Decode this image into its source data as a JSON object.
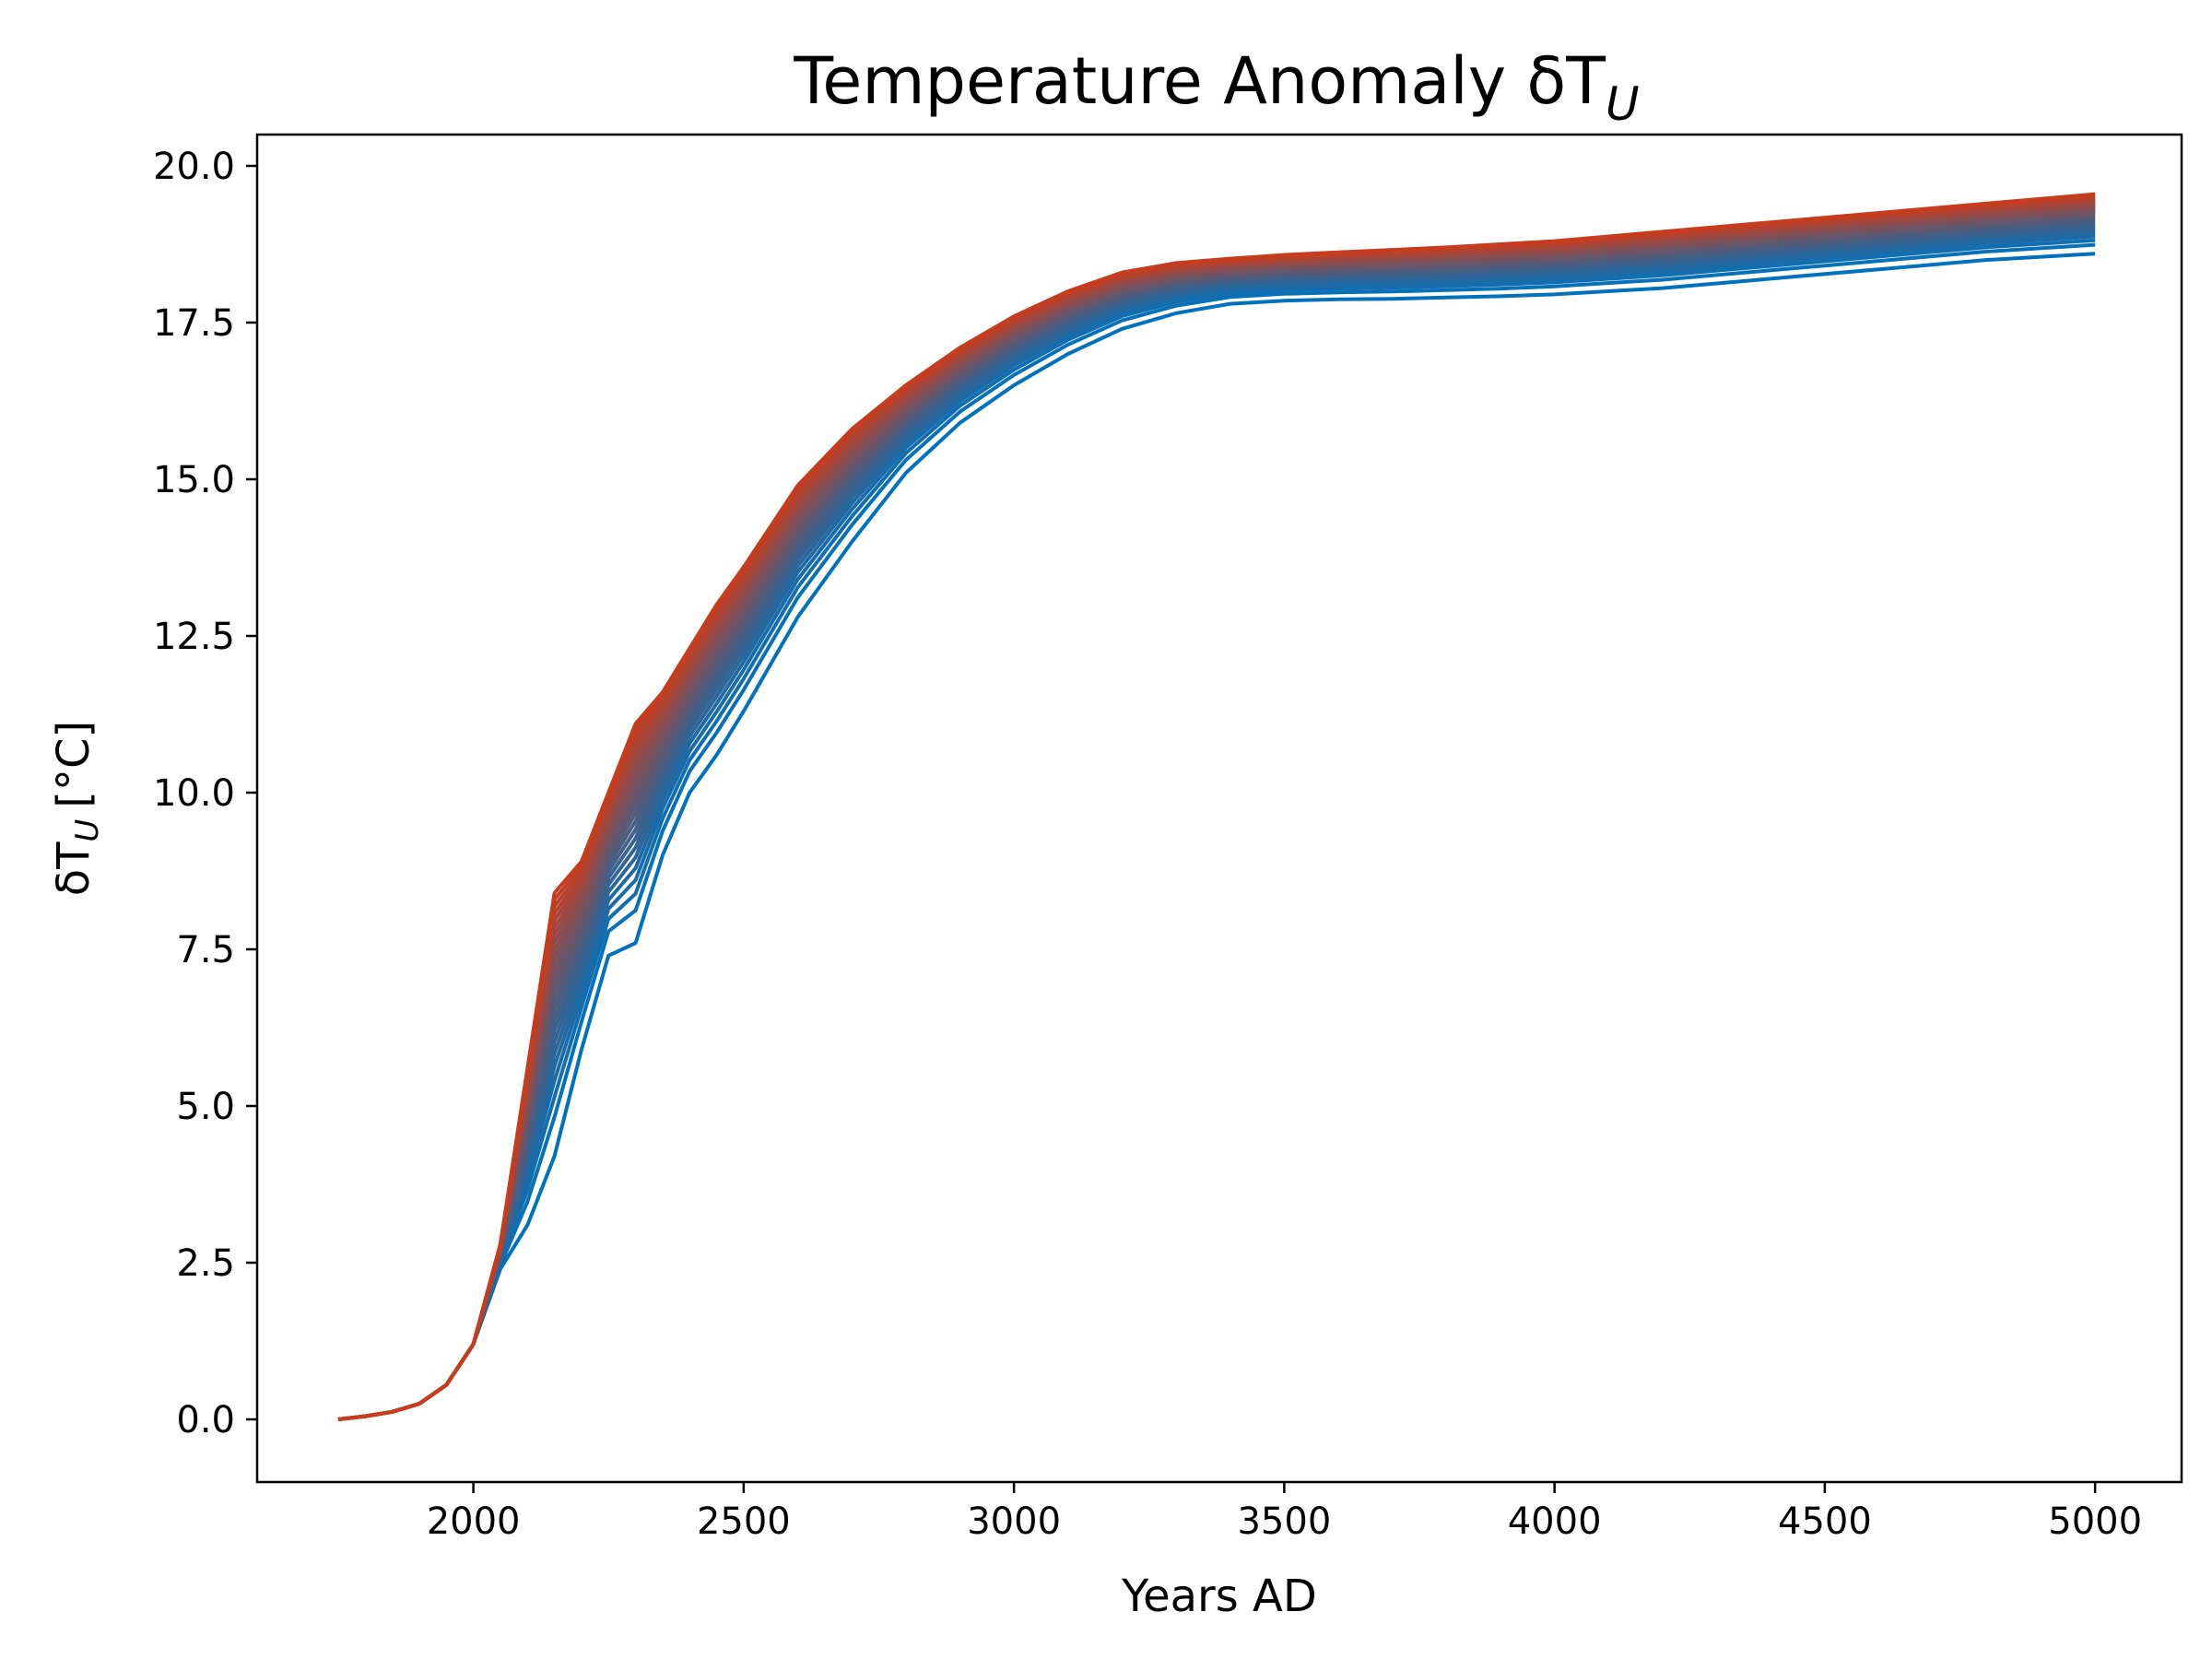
{
  "chart_data": {
    "type": "line",
    "title": "Temperature Anomaly δT",
    "title_subscript": "U",
    "xlabel": "Years AD",
    "ylabel": "δT",
    "ylabel_subscript": "U",
    "ylabel_unit": "[°C]",
    "xlim": [
      1600,
      5160
    ],
    "ylim": [
      -1,
      20.5
    ],
    "xticks": [
      2000,
      2500,
      3000,
      3500,
      4000,
      4500,
      5000
    ],
    "xtick_labels": [
      "2000",
      "2500",
      "3000",
      "3500",
      "4000",
      "4500",
      "5000"
    ],
    "yticks": [
      0,
      2.5,
      5,
      7.5,
      10,
      12.5,
      15,
      17.5,
      20
    ],
    "ytick_labels": [
      "0.0",
      "2.5",
      "5.0",
      "7.5",
      "10.0",
      "12.5",
      "15.0",
      "17.5",
      "20.0"
    ],
    "grid": false,
    "legend": false,
    "color_low": "#0072bd",
    "color_high": "#c83c1e",
    "series_count": 25,
    "x": [
      1750,
      1800,
      1850,
      1900,
      1950,
      2000,
      2050,
      2100,
      2150,
      2200,
      2250,
      2300,
      2350,
      2400,
      2450,
      2500,
      2600,
      2700,
      2800,
      2900,
      3000,
      3100,
      3200,
      3300,
      3400,
      3500,
      3600,
      3700,
      3800,
      3900,
      4000,
      4200,
      4400,
      4600,
      4800,
      5000
    ],
    "envelope": {
      "lower": [
        0,
        0.05,
        0.12,
        0.25,
        0.55,
        1.2,
        2.4,
        3.1,
        4.2,
        5.9,
        7.4,
        7.6,
        9.0,
        10.0,
        10.6,
        11.3,
        12.8,
        14.0,
        15.1,
        15.9,
        16.5,
        17.0,
        17.4,
        17.65,
        17.8,
        17.85,
        17.87,
        17.88,
        17.9,
        17.92,
        17.95,
        18.05,
        18.2,
        18.35,
        18.5,
        18.6
      ],
      "upper": [
        0,
        0.05,
        0.12,
        0.25,
        0.55,
        1.2,
        2.8,
        5.6,
        8.4,
        8.9,
        10.0,
        11.1,
        11.6,
        12.3,
        13.0,
        13.6,
        14.9,
        15.8,
        16.5,
        17.1,
        17.6,
        18.0,
        18.3,
        18.45,
        18.52,
        18.58,
        18.62,
        18.66,
        18.7,
        18.75,
        18.8,
        18.95,
        19.1,
        19.25,
        19.4,
        19.55
      ]
    }
  }
}
